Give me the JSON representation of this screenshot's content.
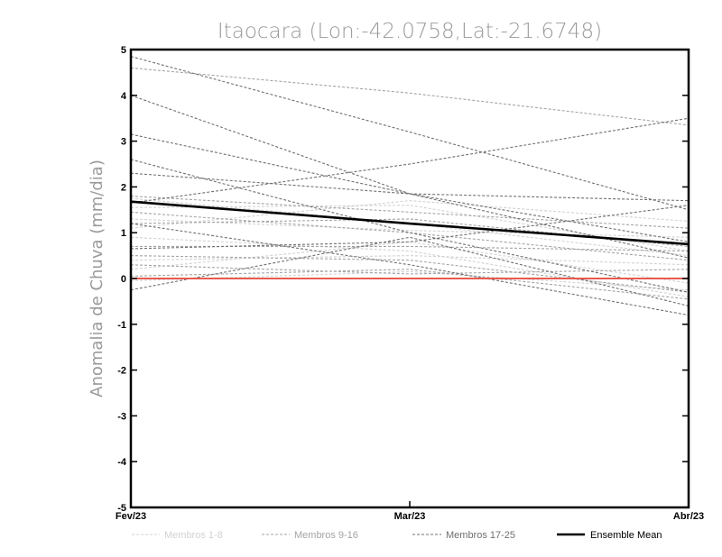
{
  "chart_data": {
    "type": "line",
    "title": "Itaocara (Lon:-42.0758,Lat:-21.6748)",
    "xlabel": "",
    "ylabel": "Anomalia de Chuva (mm/dia)",
    "categories": [
      "Fev/23",
      "Mar/23",
      "Abr/23"
    ],
    "ylim": [
      -5,
      5
    ],
    "yticks": [
      "5",
      "4",
      "3",
      "2",
      "1",
      "0",
      "-1",
      "-2",
      "-3",
      "-4",
      "-5"
    ],
    "grid": false,
    "colors": {
      "group1": "#d2d2d2",
      "group2": "#a4a4a4",
      "group3": "#707070",
      "mean": "#000000",
      "zero": "#e85a4f"
    },
    "series": [
      {
        "name": "m1",
        "group": 1,
        "values": [
          1.75,
          1.2,
          0.5
        ]
      },
      {
        "name": "m2",
        "group": 1,
        "values": [
          1.55,
          1.6,
          0.6
        ]
      },
      {
        "name": "m3",
        "group": 1,
        "values": [
          1.3,
          1.05,
          0.9
        ]
      },
      {
        "name": "m4",
        "group": 1,
        "values": [
          1.1,
          1.7,
          1.25
        ]
      },
      {
        "name": "m5",
        "group": 1,
        "values": [
          0.9,
          0.6,
          -0.4
        ]
      },
      {
        "name": "m6",
        "group": 1,
        "values": [
          0.4,
          0.5,
          0.3
        ]
      },
      {
        "name": "m7",
        "group": 1,
        "values": [
          0.2,
          0.8,
          -0.1
        ]
      },
      {
        "name": "m8",
        "group": 1,
        "values": [
          -0.05,
          0.15,
          -0.25
        ]
      },
      {
        "name": "m9",
        "group": 2,
        "values": [
          4.6,
          4.05,
          3.35
        ]
      },
      {
        "name": "m10",
        "group": 2,
        "values": [
          1.8,
          1.45,
          1.1
        ]
      },
      {
        "name": "m11",
        "group": 2,
        "values": [
          1.45,
          1.0,
          0.4
        ]
      },
      {
        "name": "m12",
        "group": 2,
        "values": [
          1.2,
          1.3,
          0.7
        ]
      },
      {
        "name": "m13",
        "group": 2,
        "values": [
          0.7,
          0.7,
          0.6
        ]
      },
      {
        "name": "m14",
        "group": 2,
        "values": [
          0.5,
          0.4,
          -0.3
        ]
      },
      {
        "name": "m15",
        "group": 2,
        "values": [
          0.3,
          0.1,
          0.2
        ]
      },
      {
        "name": "m16",
        "group": 2,
        "values": [
          0.05,
          0.2,
          -0.45
        ]
      },
      {
        "name": "m17",
        "group": 3,
        "values": [
          4.85,
          3.2,
          1.5
        ]
      },
      {
        "name": "m18",
        "group": 3,
        "values": [
          4.0,
          1.85,
          0.45
        ]
      },
      {
        "name": "m19",
        "group": 3,
        "values": [
          3.15,
          1.85,
          0.8
        ]
      },
      {
        "name": "m20",
        "group": 3,
        "values": [
          2.6,
          1.0,
          -0.3
        ]
      },
      {
        "name": "m21",
        "group": 3,
        "values": [
          2.3,
          1.85,
          1.7
        ]
      },
      {
        "name": "m22",
        "group": 3,
        "values": [
          1.65,
          2.5,
          3.5
        ]
      },
      {
        "name": "m23",
        "group": 3,
        "values": [
          1.2,
          0.3,
          -0.8
        ]
      },
      {
        "name": "m24",
        "group": 3,
        "values": [
          0.65,
          0.8,
          1.6
        ]
      },
      {
        "name": "m25",
        "group": 3,
        "values": [
          -0.25,
          0.9,
          -0.6
        ]
      },
      {
        "name": "Ensemble Mean",
        "group": 0,
        "values": [
          1.68,
          1.2,
          0.75
        ]
      }
    ],
    "annotations": [
      {
        "name": "zero",
        "value": 0
      }
    ],
    "legend": {
      "placement": "bottom",
      "entries": [
        {
          "label": "Membros 1-8",
          "group": 1
        },
        {
          "label": "Membros 9-16",
          "group": 2
        },
        {
          "label": "Membros 17-25",
          "group": 3
        },
        {
          "label": "Ensemble Mean",
          "group": 0
        }
      ]
    }
  }
}
